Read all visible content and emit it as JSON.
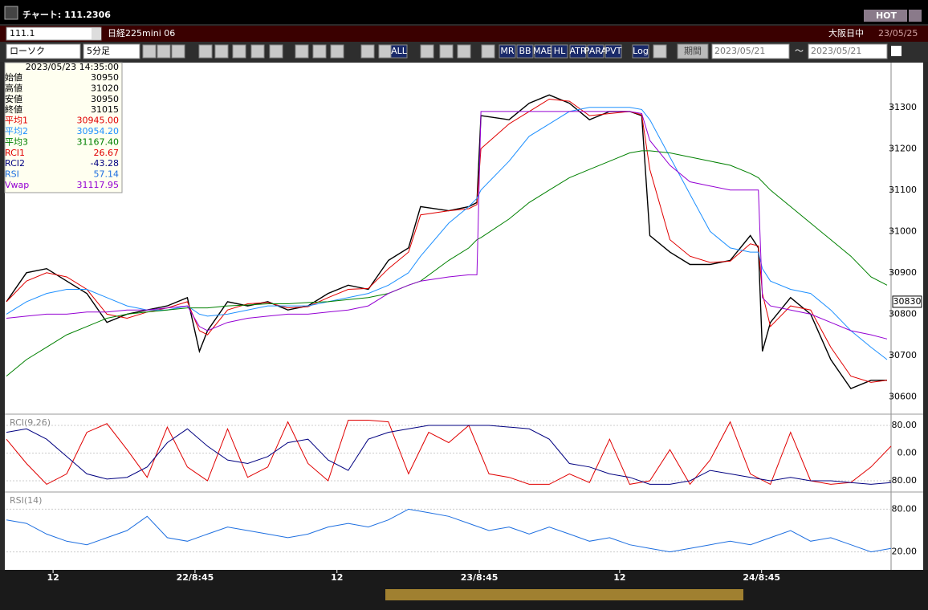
{
  "window": {
    "title": "チャート: 111.2306",
    "badge": "HOT"
  },
  "header": {
    "symbol": "111.1",
    "name": "日経225mini 06",
    "market": "大阪日中",
    "date": "23/05/25"
  },
  "toolbar": {
    "chart_type": "ローソク",
    "interval": "5分足",
    "buttons": [
      "ALL",
      "MR",
      "BB",
      "MAE",
      "HL",
      "ATR",
      "PARA",
      "PVT",
      "Log"
    ],
    "period": "期間",
    "from": "2023/05/21",
    "separator": "～",
    "to": "2023/05/21"
  },
  "info": {
    "datetime": "2023/05/23 14:35:00",
    "rows": [
      {
        "label": "始値",
        "value": "30950",
        "color": "#000000"
      },
      {
        "label": "高値",
        "value": "31020",
        "color": "#000000"
      },
      {
        "label": "安値",
        "value": "30950",
        "color": "#000000"
      },
      {
        "label": "終値",
        "value": "31015",
        "color": "#000000"
      },
      {
        "label": "平均1",
        "value": "30945.00",
        "color": "#e00000"
      },
      {
        "label": "平均2",
        "value": "30954.20",
        "color": "#1e90ff"
      },
      {
        "label": "平均3",
        "value": "31167.40",
        "color": "#008000"
      },
      {
        "label": "RCI1",
        "value": "26.67",
        "color": "#e00000"
      },
      {
        "label": "RCI2",
        "value": "-43.28",
        "color": "#000080"
      },
      {
        "label": "RSI",
        "value": "57.14",
        "color": "#1e6fe0"
      },
      {
        "label": "Vwap",
        "value": "31117.95",
        "color": "#9400d3"
      }
    ]
  },
  "chart": {
    "xlim": [
      0,
      220
    ],
    "xticks": [
      {
        "value": 11.6,
        "label": "12"
      },
      {
        "value": 46.9,
        "label": "22/8:45"
      },
      {
        "value": 82.2,
        "label": "12"
      },
      {
        "value": 117.6,
        "label": "23/8:45"
      },
      {
        "value": 152.5,
        "label": "12"
      },
      {
        "value": 187.8,
        "label": "24/8:45"
      }
    ],
    "main": {
      "type": "line",
      "ylim": [
        30560,
        31385
      ],
      "yticks": [
        30600,
        30700,
        30800,
        30900,
        31000,
        31100,
        31200,
        31300
      ],
      "last_price": 30830,
      "x": [
        0,
        5,
        10,
        15,
        20,
        25,
        30,
        35,
        40,
        45,
        48,
        50,
        55,
        60,
        65,
        70,
        75,
        80,
        85,
        90,
        95,
        100,
        103,
        110,
        115,
        117,
        118,
        125,
        130,
        135,
        140,
        145,
        150,
        155,
        158,
        160,
        165,
        170,
        175,
        180,
        185,
        187,
        188,
        190,
        195,
        200,
        205,
        210,
        215,
        219
      ],
      "series": [
        {
          "color": "#000000",
          "values": [
            30830,
            30900,
            30910,
            30880,
            30850,
            30780,
            30800,
            30810,
            30820,
            30840,
            30710,
            30760,
            30830,
            30820,
            30830,
            30810,
            30820,
            30850,
            30870,
            30860,
            30930,
            30960,
            31060,
            31050,
            31060,
            31070,
            31280,
            31270,
            31310,
            31330,
            31310,
            31270,
            31290,
            31290,
            31280,
            30990,
            30950,
            30920,
            30920,
            30930,
            30990,
            30960,
            30710,
            30780,
            30840,
            30800,
            30690,
            30620,
            30640,
            30640
          ]
        },
        {
          "color": "#e00000",
          "values": [
            30830,
            30880,
            30900,
            30890,
            30860,
            30800,
            30790,
            30805,
            30815,
            30830,
            30760,
            30750,
            30810,
            30825,
            30828,
            30815,
            30818,
            30840,
            30860,
            30862,
            30910,
            30950,
            31040,
            31050,
            31055,
            31065,
            31200,
            31260,
            31290,
            31320,
            31315,
            31280,
            31285,
            31290,
            31282,
            31150,
            30980,
            30940,
            30925,
            30928,
            30970,
            30965,
            30850,
            30770,
            30820,
            30810,
            30720,
            30650,
            30635,
            30640
          ]
        },
        {
          "color": "#1e90ff",
          "values": [
            30800,
            30830,
            30850,
            30860,
            30860,
            30840,
            30820,
            30810,
            30810,
            30820,
            30800,
            30795,
            30800,
            30810,
            30820,
            30820,
            30820,
            30830,
            30840,
            30850,
            30870,
            30900,
            30940,
            31020,
            31060,
            31080,
            31100,
            31170,
            31230,
            31260,
            31290,
            31300,
            31300,
            31300,
            31295,
            31270,
            31180,
            31090,
            31000,
            30960,
            30950,
            30950,
            30910,
            30880,
            30860,
            30850,
            30810,
            30760,
            30720,
            30690
          ]
        },
        {
          "color": "#008000",
          "values": [
            30650,
            30690,
            30720,
            30750,
            30770,
            30790,
            30800,
            30805,
            30810,
            30815,
            30815,
            30815,
            30820,
            30822,
            30825,
            30825,
            30828,
            30830,
            30835,
            30840,
            30850,
            30870,
            30880,
            30930,
            30960,
            30980,
            30985,
            31030,
            31070,
            31100,
            31130,
            31150,
            31170,
            31190,
            31195,
            31195,
            31190,
            31180,
            31170,
            31160,
            31140,
            31130,
            31120,
            31100,
            31060,
            31020,
            30980,
            30940,
            30890,
            30870
          ]
        },
        {
          "color": "#9400d3",
          "values": [
            30790,
            30795,
            30800,
            30800,
            30805,
            30805,
            30810,
            30810,
            30815,
            30820,
            30770,
            30760,
            30780,
            30790,
            30795,
            30800,
            30800,
            30805,
            30810,
            30820,
            30850,
            30870,
            30880,
            30890,
            30895,
            30895,
            31290,
            31290,
            31290,
            31290,
            31290,
            31290,
            31290,
            31290,
            31285,
            31220,
            31160,
            31120,
            31110,
            31100,
            31100,
            31100,
            30840,
            30820,
            30810,
            30800,
            30780,
            30760,
            30750,
            30740
          ]
        }
      ]
    },
    "rci": {
      "type": "line",
      "label": "RCI(9,26)",
      "ylim": [
        -110,
        110
      ],
      "yticks": [
        {
          "value": 80,
          "label": "80.00"
        },
        {
          "value": 0,
          "label": "0.00"
        },
        {
          "value": -80,
          "label": "-80.00"
        }
      ],
      "x": [
        0,
        5,
        10,
        15,
        20,
        25,
        30,
        35,
        40,
        45,
        50,
        55,
        60,
        65,
        70,
        75,
        80,
        85,
        90,
        95,
        100,
        105,
        110,
        115,
        120,
        125,
        130,
        135,
        140,
        145,
        150,
        155,
        160,
        165,
        170,
        175,
        180,
        185,
        190,
        195,
        200,
        205,
        210,
        215,
        220
      ],
      "series": [
        {
          "color": "#e00000",
          "values": [
            40,
            -30,
            -90,
            -60,
            60,
            85,
            10,
            -70,
            75,
            -40,
            -80,
            70,
            -70,
            -40,
            90,
            -30,
            -80,
            95,
            95,
            90,
            -60,
            60,
            30,
            80,
            -60,
            -70,
            -90,
            -90,
            -60,
            -85,
            40,
            -90,
            -80,
            10,
            -90,
            -20,
            90,
            -60,
            -90,
            60,
            -80,
            -90,
            -85,
            -40,
            20
          ]
        },
        {
          "color": "#000080",
          "values": [
            60,
            70,
            40,
            -10,
            -60,
            -75,
            -70,
            -40,
            30,
            70,
            20,
            -20,
            -30,
            -10,
            30,
            40,
            -20,
            -50,
            40,
            60,
            70,
            80,
            80,
            80,
            80,
            75,
            70,
            40,
            -30,
            -40,
            -60,
            -70,
            -90,
            -90,
            -80,
            -50,
            -60,
            -70,
            -80,
            -70,
            -80,
            -80,
            -85,
            -90,
            -85
          ]
        }
      ]
    },
    "rsi": {
      "type": "line",
      "label": "RSI(14)",
      "ylim": [
        -3,
        103
      ],
      "yticks": [
        {
          "value": 80,
          "label": "80.00"
        },
        {
          "value": 20,
          "label": "20.00"
        }
      ],
      "x": [
        0,
        5,
        10,
        15,
        20,
        25,
        30,
        35,
        40,
        45,
        50,
        55,
        60,
        65,
        70,
        75,
        80,
        85,
        90,
        95,
        100,
        105,
        110,
        115,
        120,
        125,
        130,
        135,
        140,
        145,
        150,
        155,
        160,
        165,
        170,
        175,
        180,
        185,
        190,
        195,
        200,
        205,
        210,
        215,
        220
      ],
      "series": [
        {
          "color": "#1e6fe0",
          "values": [
            65,
            60,
            45,
            35,
            30,
            40,
            50,
            70,
            40,
            35,
            45,
            55,
            50,
            45,
            40,
            45,
            55,
            60,
            55,
            65,
            80,
            75,
            70,
            60,
            50,
            55,
            45,
            55,
            45,
            35,
            40,
            30,
            25,
            20,
            25,
            30,
            35,
            30,
            40,
            50,
            35,
            40,
            30,
            20,
            25
          ]
        }
      ]
    }
  }
}
